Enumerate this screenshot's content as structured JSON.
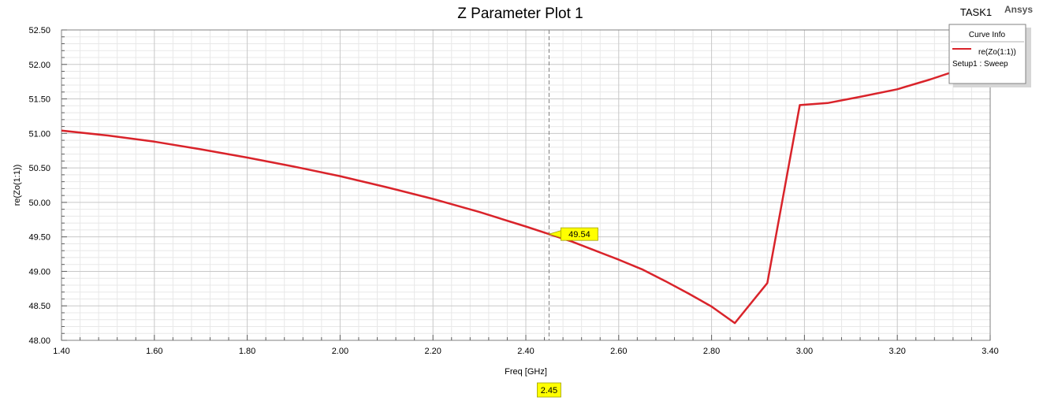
{
  "header": {
    "task_label": "TASK1",
    "brand": "Ansys"
  },
  "legend": {
    "title": "Curve Info",
    "entry": "re(Zo(1:1))",
    "setup": "Setup1 : Sweep"
  },
  "marker": {
    "x": 2.45,
    "x_label": "2.45",
    "y": 49.54,
    "y_label": "49.54"
  },
  "colors": {
    "curve": "#d9232a",
    "marker_fill": "#ffff00",
    "major_grid": "#c8c8c8",
    "minor_grid": "#e8e8e8"
  },
  "chart_data": {
    "type": "line",
    "title": "Z Parameter Plot 1",
    "xlabel": "Freq [GHz]",
    "ylabel": "re(Zo(1:1))",
    "xlim": [
      1.4,
      3.4
    ],
    "ylim": [
      48.0,
      52.5
    ],
    "grid": true,
    "legend_position": "top-right",
    "x_ticks": [
      "1.40",
      "1.60",
      "1.80",
      "2.00",
      "2.20",
      "2.40",
      "2.60",
      "2.80",
      "3.00",
      "3.20",
      "3.40"
    ],
    "y_ticks": [
      "48.00",
      "48.50",
      "49.00",
      "49.50",
      "50.00",
      "50.50",
      "51.00",
      "51.50",
      "52.00",
      "52.50"
    ],
    "series": [
      {
        "name": "re(Zo(1:1))",
        "x": [
          1.4,
          1.5,
          1.6,
          1.7,
          1.8,
          1.9,
          2.0,
          2.1,
          2.2,
          2.3,
          2.4,
          2.45,
          2.5,
          2.55,
          2.6,
          2.65,
          2.7,
          2.75,
          2.8,
          2.85,
          2.92,
          2.99,
          3.05,
          3.12,
          3.2,
          3.27,
          3.35,
          3.4
        ],
        "y": [
          51.04,
          50.97,
          50.88,
          50.77,
          50.65,
          50.52,
          50.38,
          50.22,
          50.05,
          49.86,
          49.65,
          49.54,
          49.43,
          49.3,
          49.17,
          49.03,
          48.86,
          48.68,
          48.49,
          48.25,
          48.83,
          51.41,
          51.44,
          51.53,
          51.64,
          51.78,
          51.96,
          52.12
        ]
      }
    ]
  }
}
